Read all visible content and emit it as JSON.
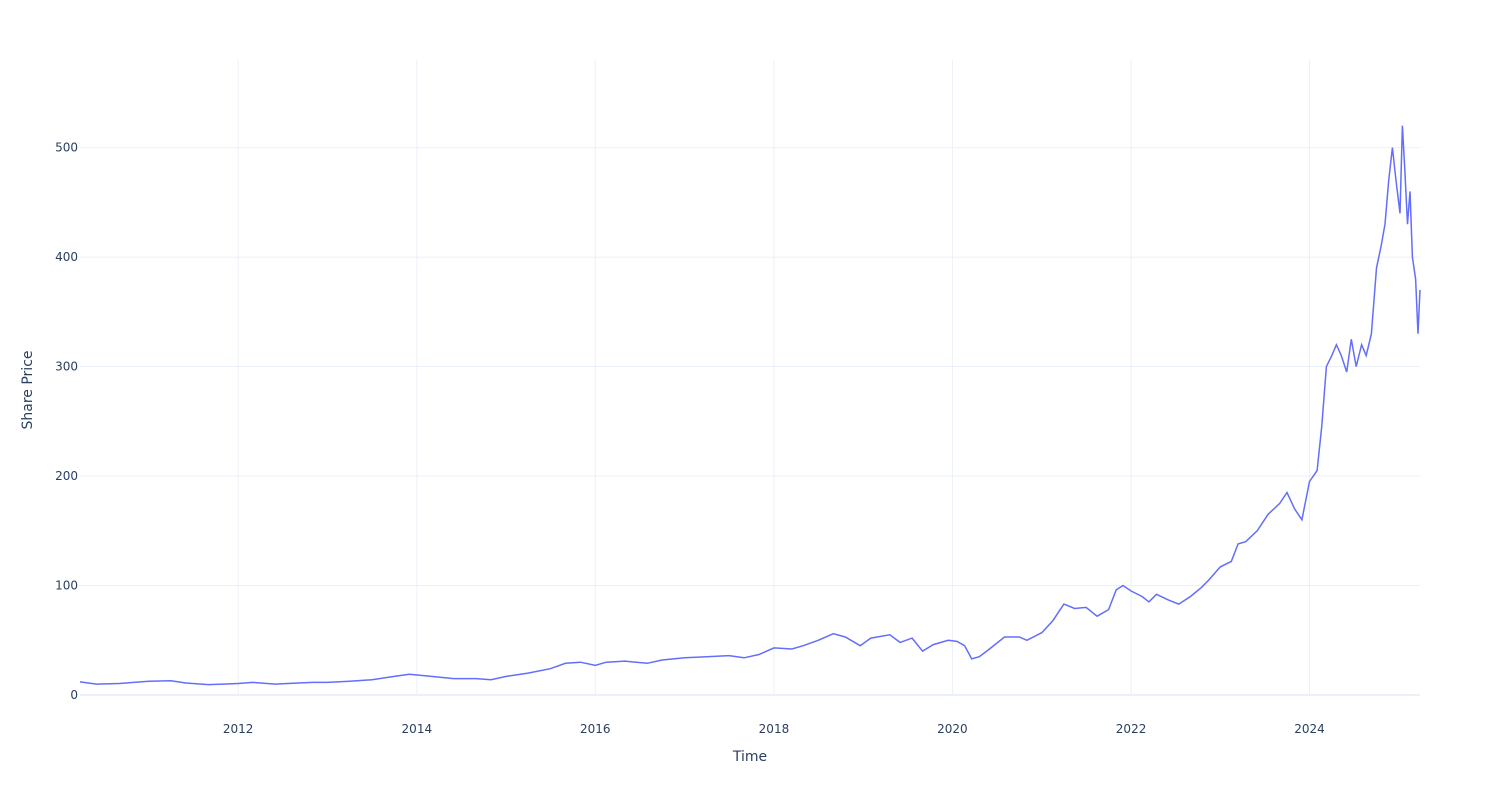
{
  "chart_data": {
    "type": "line",
    "title": "",
    "xlabel": "Time",
    "ylabel": "Share Price",
    "xlim": [
      "2010-03-25",
      "2025-03-28"
    ],
    "ylim": [
      0,
      580
    ],
    "grid": true,
    "legend": "none",
    "line_color": "#636efa",
    "x_ticks": [
      {
        "value": "2012-01-01",
        "label": "2012"
      },
      {
        "value": "2014-01-01",
        "label": "2014"
      },
      {
        "value": "2016-01-01",
        "label": "2016"
      },
      {
        "value": "2018-01-01",
        "label": "2018"
      },
      {
        "value": "2020-01-01",
        "label": "2020"
      },
      {
        "value": "2022-01-01",
        "label": "2022"
      },
      {
        "value": "2024-01-01",
        "label": "2024"
      }
    ],
    "y_ticks": [
      {
        "value": 0,
        "label": "0"
      },
      {
        "value": 100,
        "label": "100"
      },
      {
        "value": 200,
        "label": "200"
      },
      {
        "value": 300,
        "label": "300"
      },
      {
        "value": 400,
        "label": "400"
      },
      {
        "value": 500,
        "label": "500"
      }
    ],
    "series": [
      {
        "name": "",
        "x": [
          "2010-03-25",
          "2010-06-01",
          "2010-09-01",
          "2011-01-01",
          "2011-04-01",
          "2011-06-01",
          "2011-09-01",
          "2011-11-01",
          "2012-01-01",
          "2012-03-01",
          "2012-06-01",
          "2012-09-01",
          "2012-11-01",
          "2013-01-01",
          "2013-04-01",
          "2013-07-01",
          "2013-10-01",
          "2013-12-01",
          "2014-03-01",
          "2014-06-01",
          "2014-09-01",
          "2014-11-01",
          "2015-01-01",
          "2015-04-01",
          "2015-07-01",
          "2015-09-01",
          "2015-11-01",
          "2016-01-01",
          "2016-02-15",
          "2016-05-01",
          "2016-08-01",
          "2016-10-01",
          "2017-01-01",
          "2017-04-01",
          "2017-07-01",
          "2017-09-01",
          "2017-11-01",
          "2018-01-01",
          "2018-03-15",
          "2018-05-01",
          "2018-07-01",
          "2018-09-01",
          "2018-10-20",
          "2018-12-20",
          "2019-02-01",
          "2019-04-20",
          "2019-06-01",
          "2019-07-20",
          "2019-09-01",
          "2019-10-15",
          "2019-12-15",
          "2020-01-20",
          "2020-02-20",
          "2020-03-20",
          "2020-04-20",
          "2020-06-01",
          "2020-08-01",
          "2020-10-01",
          "2020-11-01",
          "2021-01-01",
          "2021-02-15",
          "2021-04-01",
          "2021-05-15",
          "2021-07-01",
          "2021-08-15",
          "2021-10-01",
          "2021-11-01",
          "2021-11-29",
          "2022-01-01",
          "2022-02-15",
          "2022-03-15",
          "2022-04-15",
          "2022-06-01",
          "2022-07-15",
          "2022-09-01",
          "2022-10-15",
          "2022-11-15",
          "2023-01-01",
          "2023-02-15",
          "2023-03-15",
          "2023-04-15",
          "2023-06-01",
          "2023-07-15",
          "2023-09-01",
          "2023-10-01",
          "2023-11-01",
          "2023-12-01",
          "2024-01-01",
          "2024-02-01",
          "2024-02-20",
          "2024-03-10",
          "2024-04-01",
          "2024-04-20",
          "2024-05-10",
          "2024-06-01",
          "2024-06-20",
          "2024-07-10",
          "2024-08-01",
          "2024-08-20",
          "2024-09-10",
          "2024-10-01",
          "2024-10-20",
          "2024-11-05",
          "2024-11-20",
          "2024-12-05",
          "2024-12-20",
          "2025-01-05",
          "2025-01-15",
          "2025-01-25",
          "2025-02-05",
          "2025-02-15",
          "2025-02-25",
          "2025-03-10",
          "2025-03-20",
          "2025-03-28"
        ],
        "y": [
          12,
          10,
          10.5,
          12.5,
          13,
          11,
          9.5,
          10,
          10.5,
          11.5,
          10,
          11,
          11.5,
          11.5,
          12.5,
          14,
          17,
          19,
          17,
          15,
          15,
          14,
          17,
          20,
          24,
          29,
          30,
          27,
          30,
          31,
          29,
          32,
          34,
          35,
          36,
          34,
          37,
          43,
          42,
          45,
          50,
          56,
          53,
          45,
          52,
          55,
          48,
          52,
          40,
          46,
          50,
          49,
          45,
          33,
          35,
          42,
          53,
          53,
          50,
          57,
          68,
          83,
          79,
          80,
          72,
          78,
          96,
          100,
          95,
          90,
          85,
          92,
          87,
          83,
          90,
          98,
          105,
          117,
          122,
          138,
          140,
          150,
          165,
          175,
          185,
          170,
          160,
          195,
          205,
          245,
          300,
          310,
          320,
          310,
          295,
          325,
          300,
          320,
          310,
          330,
          390,
          410,
          430,
          470,
          500,
          470,
          440,
          520,
          480,
          430,
          460,
          400,
          380,
          330,
          370
        ]
      }
    ]
  }
}
